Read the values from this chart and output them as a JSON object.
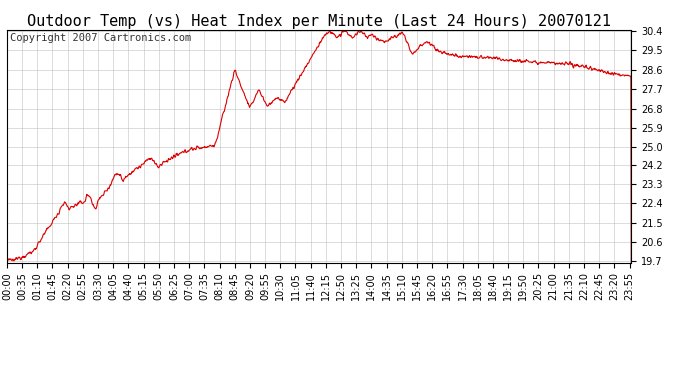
{
  "title": "Outdoor Temp (vs) Heat Index per Minute (Last 24 Hours) 20070121",
  "copyright_text": "Copyright 2007 Cartronics.com",
  "line_color": "#dd0000",
  "background_color": "#ffffff",
  "plot_bg_color": "#ffffff",
  "grid_color": "#bbbbbb",
  "ylim": [
    19.7,
    30.4
  ],
  "yticks": [
    19.7,
    20.6,
    21.5,
    22.4,
    23.3,
    24.2,
    25.0,
    25.9,
    26.8,
    27.7,
    28.6,
    29.5,
    30.4
  ],
  "xtick_labels": [
    "00:00",
    "00:35",
    "01:10",
    "01:45",
    "02:20",
    "02:55",
    "03:30",
    "04:05",
    "04:40",
    "05:15",
    "05:50",
    "06:25",
    "07:00",
    "07:35",
    "08:10",
    "08:45",
    "09:20",
    "09:55",
    "10:30",
    "11:05",
    "11:40",
    "12:15",
    "12:50",
    "13:25",
    "14:00",
    "14:35",
    "15:10",
    "15:45",
    "16:20",
    "16:55",
    "17:30",
    "18:05",
    "18:40",
    "19:15",
    "19:50",
    "20:25",
    "21:00",
    "21:35",
    "22:10",
    "22:45",
    "23:20",
    "23:55"
  ],
  "title_fontsize": 11,
  "tick_fontsize": 7,
  "copyright_fontsize": 7.5
}
